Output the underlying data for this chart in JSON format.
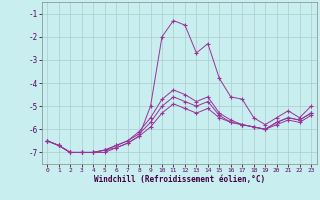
{
  "title": "",
  "xlabel": "Windchill (Refroidissement éolien,°C)",
  "ylabel": "",
  "bg_color": "#c8eef0",
  "line_color": "#993399",
  "grid_color": "#aacccc",
  "xlim": [
    -0.5,
    23.5
  ],
  "ylim": [
    -7.5,
    -0.5
  ],
  "yticks": [
    -7,
    -6,
    -5,
    -4,
    -3,
    -2,
    -1
  ],
  "xticks": [
    0,
    1,
    2,
    3,
    4,
    5,
    6,
    7,
    8,
    9,
    10,
    11,
    12,
    13,
    14,
    15,
    16,
    17,
    18,
    19,
    20,
    21,
    22,
    23
  ],
  "series": [
    [
      -6.5,
      -6.7,
      -7.0,
      -7.0,
      -7.0,
      -7.0,
      -6.8,
      -6.6,
      -6.3,
      -5.0,
      -2.0,
      -1.3,
      -1.5,
      -2.7,
      -2.3,
      -3.8,
      -4.6,
      -4.7,
      -5.5,
      -5.8,
      -5.5,
      -5.2,
      -5.5,
      -5.0
    ],
    [
      -6.5,
      -6.7,
      -7.0,
      -7.0,
      -7.0,
      -6.9,
      -6.7,
      -6.5,
      -6.1,
      -5.5,
      -4.7,
      -4.3,
      -4.5,
      -4.8,
      -4.6,
      -5.3,
      -5.6,
      -5.8,
      -5.9,
      -6.0,
      -5.7,
      -5.5,
      -5.6,
      -5.3
    ],
    [
      -6.5,
      -6.7,
      -7.0,
      -7.0,
      -7.0,
      -6.9,
      -6.7,
      -6.5,
      -6.2,
      -5.7,
      -5.0,
      -4.6,
      -4.8,
      -5.0,
      -4.8,
      -5.4,
      -5.7,
      -5.8,
      -5.9,
      -6.0,
      -5.7,
      -5.5,
      -5.6,
      -5.3
    ],
    [
      -6.5,
      -6.7,
      -7.0,
      -7.0,
      -7.0,
      -6.9,
      -6.8,
      -6.6,
      -6.3,
      -5.9,
      -5.3,
      -4.9,
      -5.1,
      -5.3,
      -5.1,
      -5.5,
      -5.7,
      -5.8,
      -5.9,
      -6.0,
      -5.8,
      -5.6,
      -5.7,
      -5.4
    ]
  ]
}
